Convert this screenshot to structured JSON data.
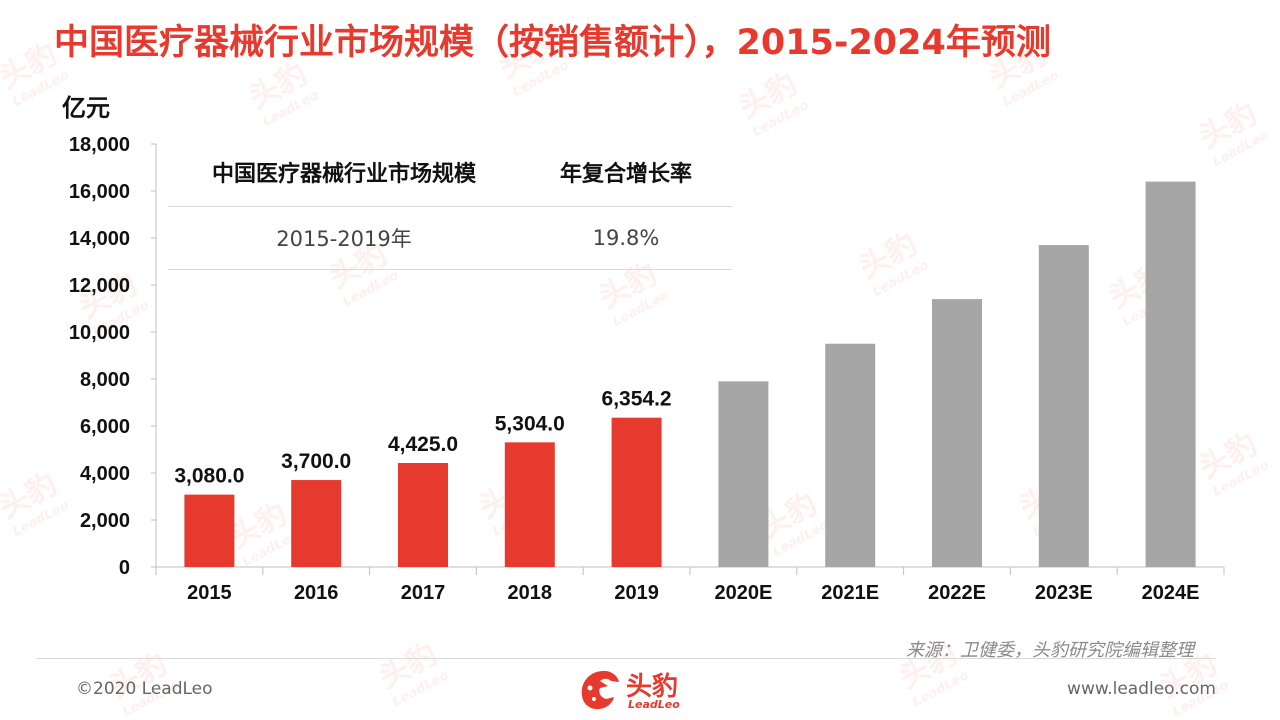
{
  "title": "中国医疗器械行业市场规模（按销售额计），2015-2024年预测",
  "unit": "亿元",
  "table": {
    "headers": [
      "中国医疗器械行业市场规模",
      "年复合增长率"
    ],
    "row": [
      "2015-2019年",
      "19.8%"
    ]
  },
  "chart_data": {
    "type": "bar",
    "title": "",
    "ylabel": "亿元",
    "xlabel": "",
    "ylim": [
      0,
      18000
    ],
    "yticks": [
      0,
      2000,
      4000,
      6000,
      8000,
      10000,
      12000,
      14000,
      16000,
      18000
    ],
    "ytick_labels": [
      "0",
      "2,000",
      "4,000",
      "6,000",
      "8,000",
      "10,000",
      "12,000",
      "14,000",
      "16,000",
      "18,000"
    ],
    "categories": [
      "2015",
      "2016",
      "2017",
      "2018",
      "2019",
      "2020E",
      "2021E",
      "2022E",
      "2023E",
      "2024E"
    ],
    "values": [
      3080.0,
      3700.0,
      4425.0,
      5304.0,
      6354.2,
      7900,
      9500,
      11400,
      13700,
      16400
    ],
    "data_labels": [
      "3,080.0",
      "3,700.0",
      "4,425.0",
      "5,304.0",
      "6,354.2",
      "",
      "",
      "",
      "",
      ""
    ],
    "bar_colors": [
      "#e63a2e",
      "#e63a2e",
      "#e63a2e",
      "#e63a2e",
      "#e63a2e",
      "#a6a6a6",
      "#a6a6a6",
      "#a6a6a6",
      "#a6a6a6",
      "#a6a6a6"
    ],
    "grid": false,
    "legend": "none"
  },
  "source": "来源：卫健委，头豹研究院编辑整理",
  "footer": {
    "copyright": "©2020 LeadLeo",
    "website": "www.leadleo.com"
  },
  "logo": {
    "cn": "头豹",
    "en": "LeadLeo"
  },
  "watermark": {
    "cn": "头豹",
    "en": "LeadLeo"
  },
  "colors": {
    "accent": "#e63a2e",
    "forecast": "#a6a6a6"
  }
}
